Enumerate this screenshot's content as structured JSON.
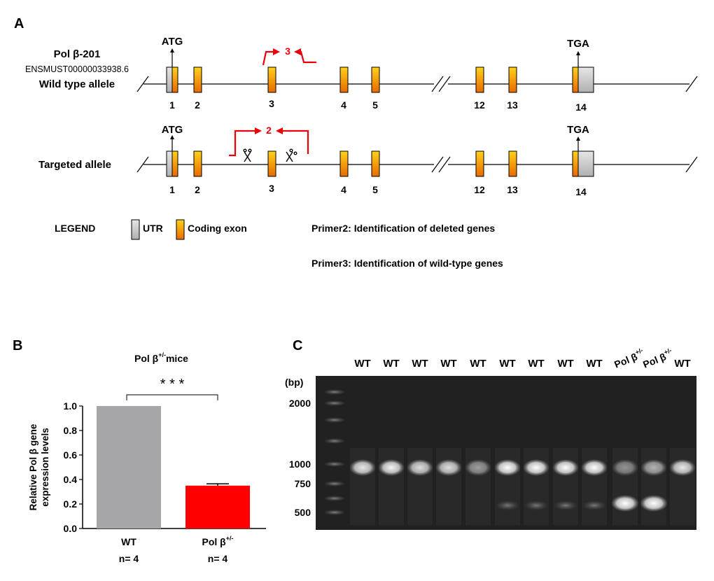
{
  "panel_a": {
    "label": "A",
    "wild_type": {
      "isoform": "Pol β-201",
      "accession": "ENSMUST00000033938.6",
      "allele_name": "Wild type allele",
      "start_codon": "ATG",
      "stop_codon": "TGA",
      "primer_label": "3"
    },
    "targeted": {
      "allele_name": "Targeted allele",
      "start_codon": "ATG",
      "stop_codon": "TGA",
      "primer_label": "2"
    },
    "exon_numbers": [
      "1",
      "2",
      "3",
      "4",
      "5",
      "12",
      "13",
      "14"
    ],
    "legend": {
      "title": "LEGEND",
      "utr": "UTR",
      "coding": "Coding exon",
      "primer2": "Primer2: Identification of deleted genes",
      "primer3": "Primer3: Identification of wild-type genes"
    },
    "colors": {
      "primer": "#e8000b",
      "exon_top": "#ffd21a",
      "exon_bottom": "#e86a00",
      "utr": "#c8c8c8"
    }
  },
  "panel_b": {
    "label": "B",
    "title_main": "Pol β",
    "title_sup": "+/-",
    "title_tail": "mice",
    "significance": "* * *",
    "chart_data": {
      "type": "bar",
      "ylabel_line1": "Relative Pol β gene",
      "ylabel_line2": "expression levels",
      "ylim": [
        0,
        1.0
      ],
      "yticks": [
        "0.0",
        "0.2",
        "0.4",
        "0.6",
        "0.8",
        "1.0"
      ],
      "bars": [
        {
          "label": "WT",
          "label_sup": "",
          "n": "n= 4",
          "value": 1.0,
          "error": 0,
          "color": "#a6a6a8"
        },
        {
          "label": "Pol β",
          "label_sup": "+/-",
          "n": "n= 4",
          "value": 0.35,
          "error": 0.015,
          "color": "#ff0000"
        }
      ]
    }
  },
  "panel_c": {
    "label": "C",
    "unit": "(bp)",
    "ladder_labels": [
      "2000",
      "1000",
      "750",
      "500"
    ],
    "lanes": [
      {
        "label": "WT",
        "sup": ""
      },
      {
        "label": "WT",
        "sup": ""
      },
      {
        "label": "WT",
        "sup": ""
      },
      {
        "label": "WT",
        "sup": ""
      },
      {
        "label": "WT",
        "sup": ""
      },
      {
        "label": "WT",
        "sup": ""
      },
      {
        "label": "WT",
        "sup": ""
      },
      {
        "label": "WT",
        "sup": ""
      },
      {
        "label": "WT",
        "sup": ""
      },
      {
        "label": "Pol β",
        "sup": "+/-"
      },
      {
        "label": "Pol β",
        "sup": "+/-"
      },
      {
        "label": "WT",
        "sup": ""
      }
    ]
  }
}
